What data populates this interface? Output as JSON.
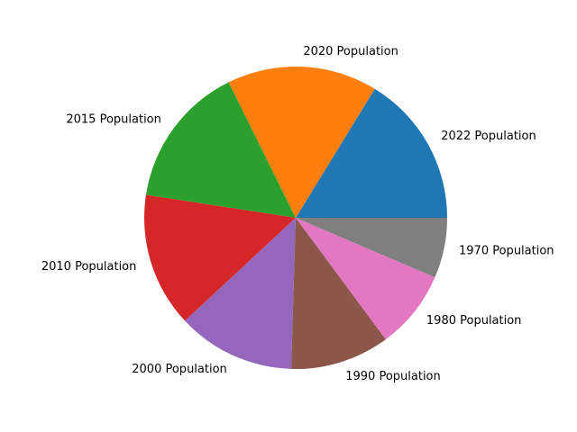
{
  "chart_data": {
    "type": "pie",
    "title": "",
    "categories": [
      "2022 Population",
      "2020 Population",
      "2015 Population",
      "2010 Population",
      "2000 Population",
      "1990 Population",
      "1980 Population",
      "1970 Population"
    ],
    "values": [
      16.4,
      16.2,
      15.4,
      14.5,
      12.7,
      10.7,
      8.5,
      6.5
    ],
    "colors": [
      "#1f77b4",
      "#ff7f0e",
      "#2ca02c",
      "#d62728",
      "#9467bd",
      "#8c564b",
      "#e377c2",
      "#7f7f7f"
    ],
    "start_angle_deg": 0,
    "direction": "counterclockwise",
    "legend": "none"
  }
}
